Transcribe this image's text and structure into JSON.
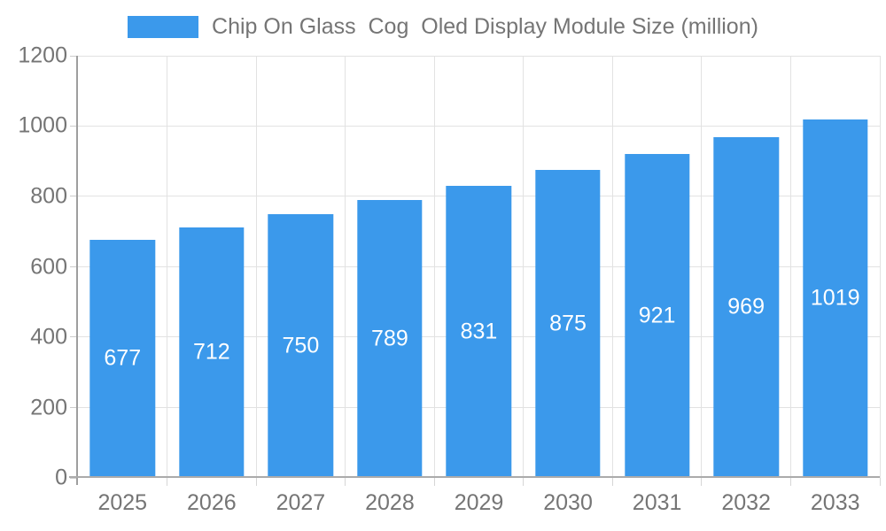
{
  "legend": {
    "items": [
      {
        "label": "Chip On Glass  Cog  Oled Display Module Size (million)",
        "color": "#3b99eb"
      }
    ]
  },
  "chart_data": {
    "type": "bar",
    "title": "Chip On Glass  Cog  Oled Display Module Size (million)",
    "categories": [
      "2025",
      "2026",
      "2027",
      "2028",
      "2029",
      "2030",
      "2031",
      "2032",
      "2033"
    ],
    "values": [
      677,
      712,
      750,
      789,
      831,
      875,
      921,
      969,
      1019
    ],
    "xlabel": "",
    "ylabel": "",
    "ylim": [
      0,
      1200
    ],
    "yticks": [
      0,
      200,
      400,
      600,
      800,
      1000,
      1200
    ],
    "grid": true,
    "legend_position": "top-center",
    "value_label_position": "inside-center",
    "colors": {
      "bar": "#3b99eb",
      "value_label": "#ffffff",
      "axis_text": "#757575",
      "grid_line": "#e2e2e2",
      "axis_line": "#9e9e9e"
    }
  }
}
